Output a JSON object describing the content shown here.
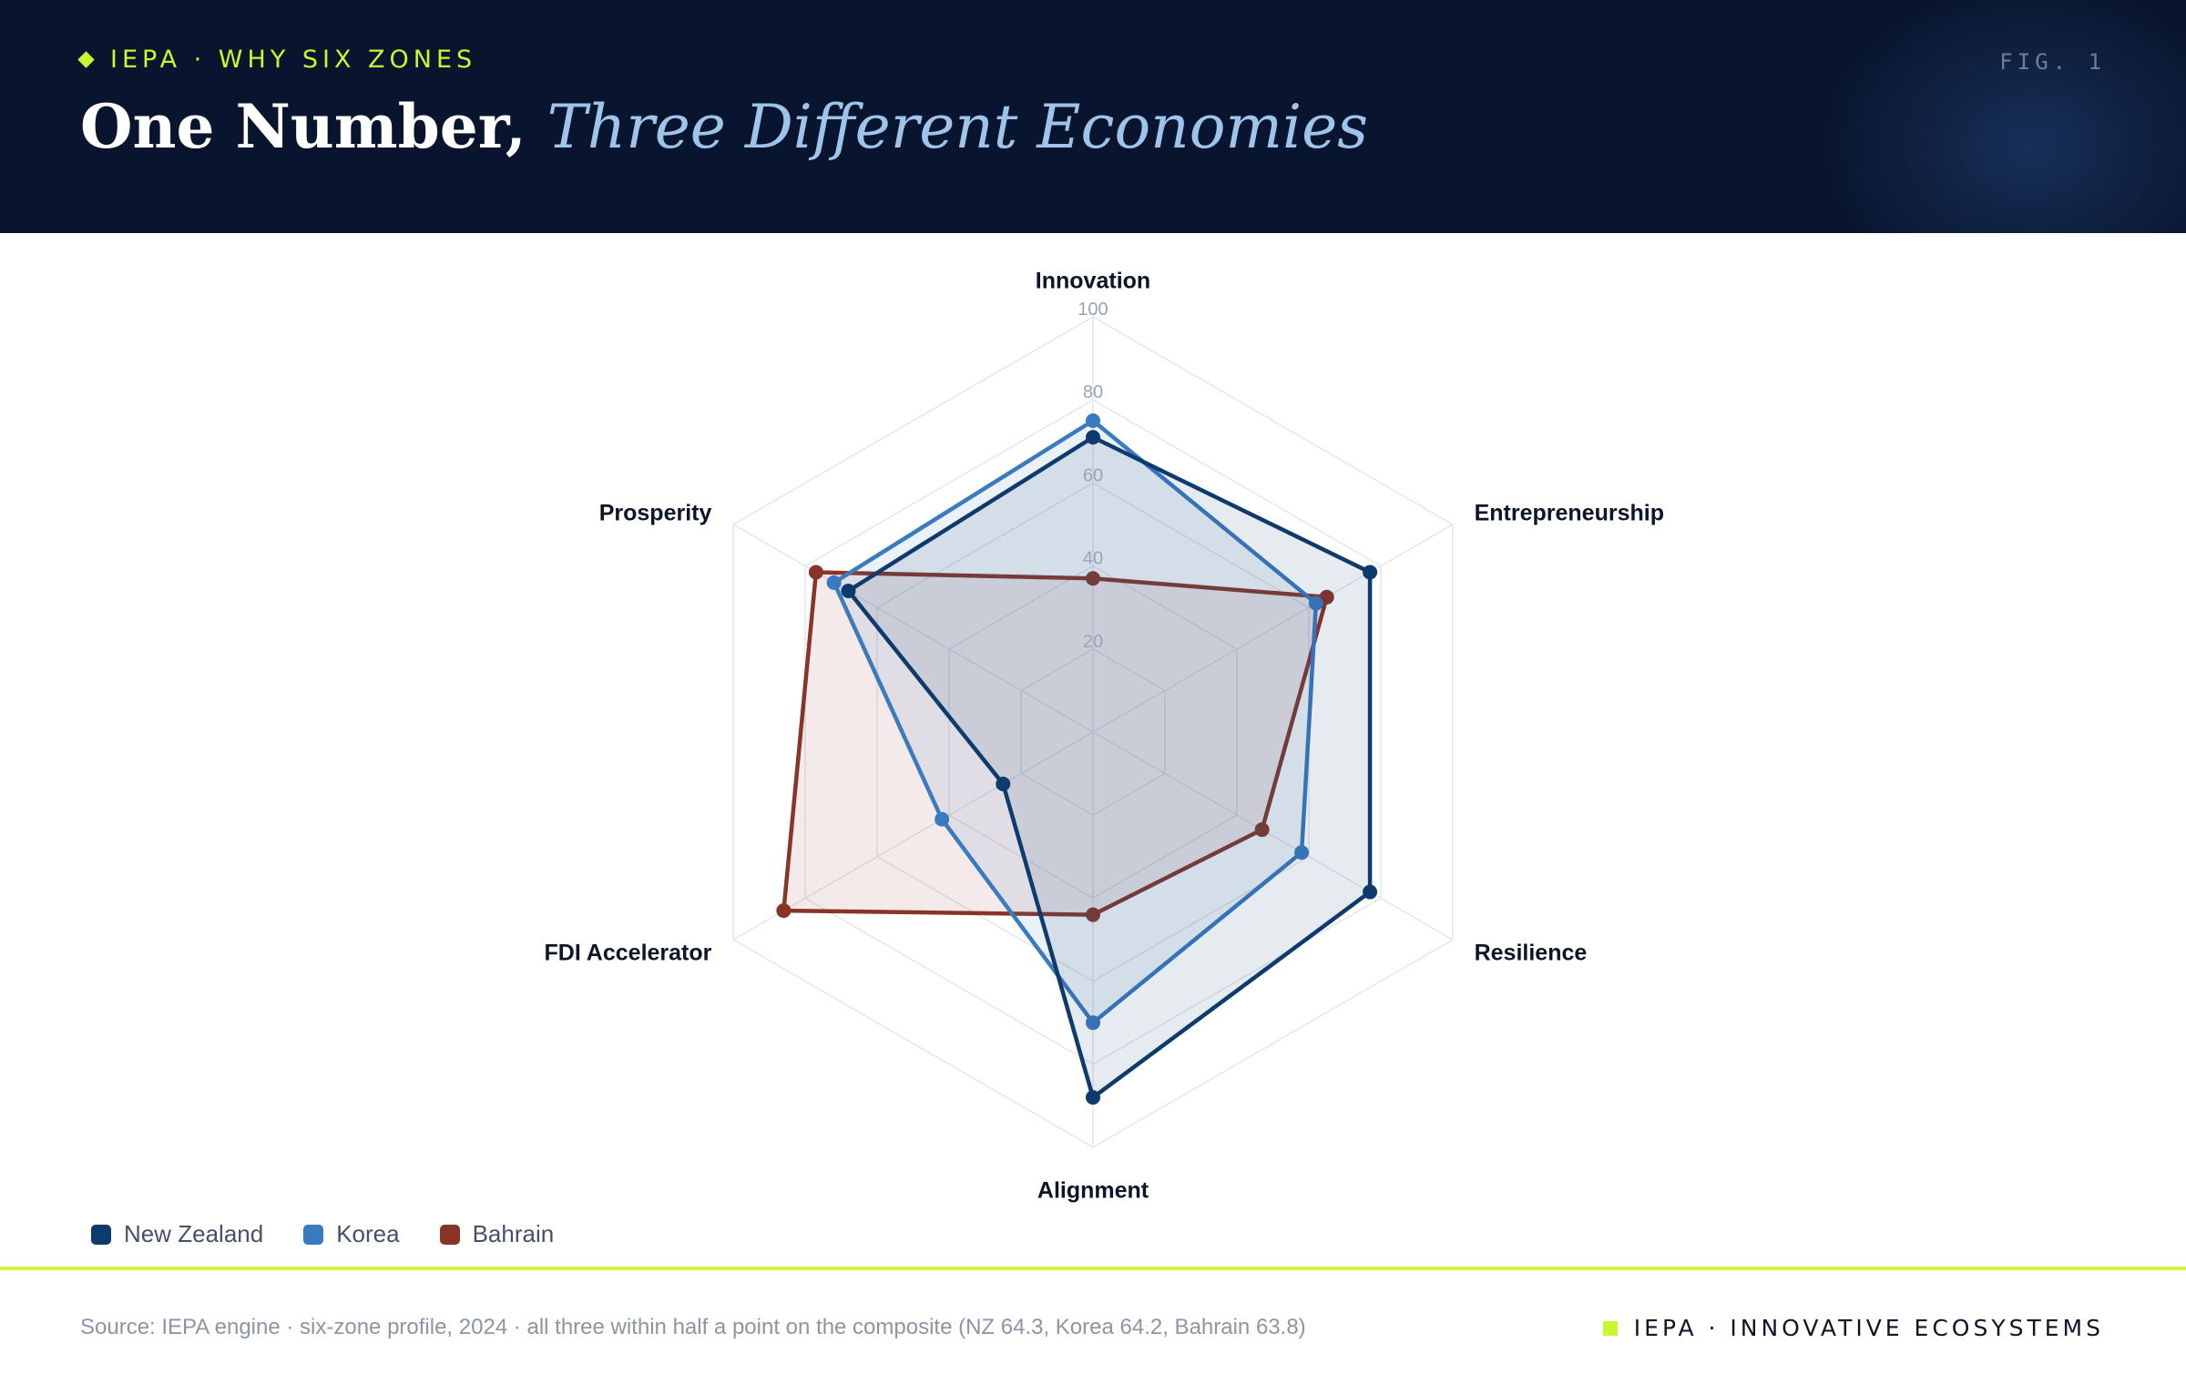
{
  "header": {
    "kicker": "IEPA · WHY SIX ZONES",
    "fig_label": "FIG. 1",
    "title_main": "One Number,",
    "title_accent": "Three Different Economies"
  },
  "chart_data": {
    "type": "radar",
    "axes": [
      "Innovation",
      "Entrepreneurship",
      "Resilience",
      "Alignment",
      "FDI Accelerator",
      "Prosperity"
    ],
    "rlim": [
      0,
      100
    ],
    "ticks": [
      20,
      40,
      60,
      80,
      100
    ],
    "grid": true,
    "legend_position": "bottom-left",
    "series": [
      {
        "name": "New Zealand",
        "color": "#0d3b6e",
        "values": [
          71,
          77,
          77,
          88,
          25,
          68
        ]
      },
      {
        "name": "Korea",
        "color": "#3a7abf",
        "values": [
          75,
          62,
          58,
          70,
          42,
          72
        ]
      },
      {
        "name": "Bahrain",
        "color": "#883528",
        "values": [
          37,
          65,
          47,
          44,
          86,
          77
        ]
      }
    ]
  },
  "footer": {
    "source": "Source: IEPA engine · six-zone profile, 2024 · all three within half a point on the composite (NZ 64.3, Korea 64.2, Bahrain 63.8)",
    "brand": "IEPA · INNOVATIVE ECOSYSTEMS"
  }
}
